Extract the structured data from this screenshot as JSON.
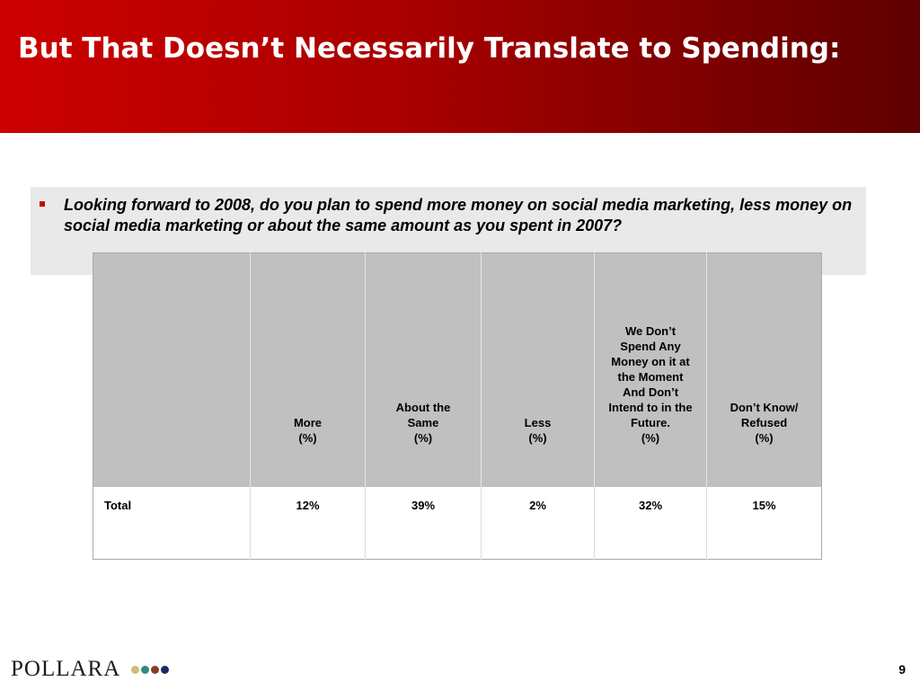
{
  "slide": {
    "title": "But That Doesn’t Necessarily Translate to Spending:",
    "question": "Looking forward to 2008, do you plan to spend more money on social media marketing, less money on social media marketing or about the same amount as you spent in 2007?",
    "page_number": "9"
  },
  "colors": {
    "header_red": "#cc0000",
    "header_dark": "#5e0000",
    "question_bg": "#e9e9e9",
    "table_header_bg": "#c0c0c0",
    "bullet": "#cc0000"
  },
  "table": {
    "columns": [
      {
        "lines": [
          "More",
          "(%)"
        ]
      },
      {
        "lines": [
          "About the",
          "Same",
          "(%)"
        ]
      },
      {
        "lines": [
          "Less",
          "(%)"
        ]
      },
      {
        "lines": [
          "We Don’t",
          "Spend Any",
          "Money on it at",
          "the Moment",
          "And Don’t",
          "Intend to in the",
          "Future.",
          "(%)"
        ]
      },
      {
        "lines": [
          "Don’t Know/",
          "Refused",
          "(%)"
        ]
      }
    ],
    "rows": [
      {
        "label": "Total",
        "values": [
          "12%",
          "39%",
          "2%",
          "32%",
          "15%"
        ]
      }
    ]
  },
  "logo": {
    "text": "POLLARA",
    "dots": [
      "#d8b878",
      "#2e8c84",
      "#8c3a22",
      "#1c2a5e"
    ]
  }
}
